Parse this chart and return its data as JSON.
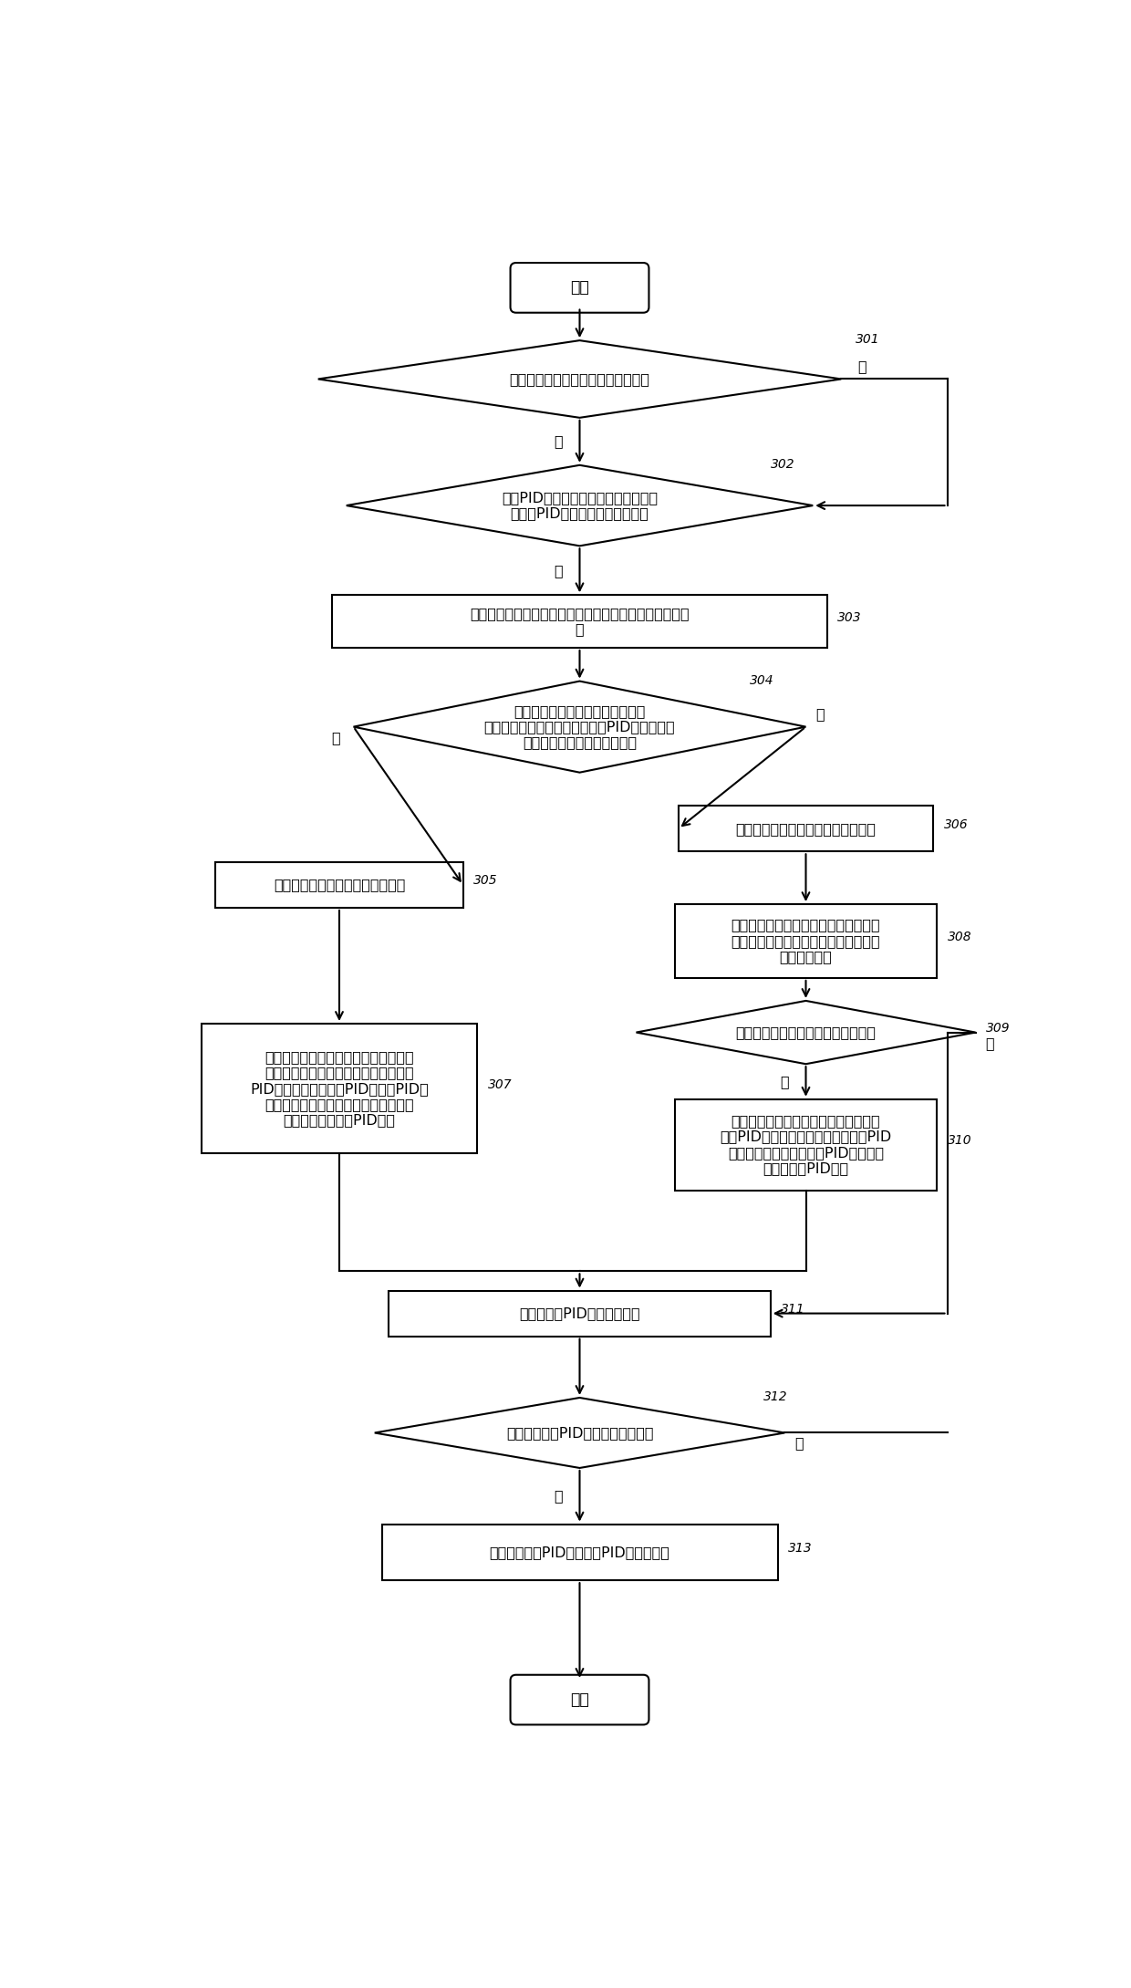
{
  "bg_color": "#ffffff",
  "line_color": "#000000",
  "text_color": "#000000",
  "figsize": [
    12.4,
    21.79
  ],
  "dpi": 100,
  "nodes": {
    "start": {
      "label": "开始"
    },
    "d301": {
      "label": "判断风力发电机组是否处于变桨状态",
      "ref": "301"
    },
    "d302": {
      "label": "判断PID控制器输出的实时给定位置是\n否等于PID控制器设定的目标位置",
      "ref": "302"
    },
    "r303": {
      "label": "在控制周期中记录被控系统的预设调整对象的实时实际位\n置",
      "ref": "303"
    },
    "d304": {
      "label": "若被控系统的预设调整对象的实时\n实际位置等于目标位置，则判断PID控制器的实\n时输出速度是否大于预设阈值",
      "ref": "304"
    },
    "r305": {
      "label": "确定被控系统的预设调整对象超调",
      "ref": "305"
    },
    "r306": {
      "label": "确定被控系统的预设调整对象未超调",
      "ref": "306"
    },
    "r307": {
      "label": "根据当前时刻之前预设数量控制周期的\n预设调整对象的实时实际位置及预设的\nPID公式计算整定后的PID参数，PID公\n式的参数包括目标位置、预设调整对象\n的实时实际位置及PID参数",
      "ref": "307"
    },
    "r308": {
      "label": "计算实时给定位置达到目标位置的时刻\n与实时实际位置达到目标位置的时刻之\n间的时间差值",
      "ref": "308"
    },
    "d309": {
      "label": "判断时间差值是否大于预设时间差值",
      "ref": "309"
    },
    "r310": {
      "label": "计算时间差值与预设时间差值的比值，\n作为PID参数的增大比例系数，按照PID\n参数的增大比例系数增大PID参数，形\n成整定后的PID参数",
      "ref": "310"
    },
    "r311": {
      "label": "对整定后的PID参数进行校验",
      "ref": "311"
    },
    "d312": {
      "label": "判断整定后的PID参数是否通过校验",
      "ref": "312"
    },
    "r313": {
      "label": "根据整定后的PID参数进行PID控制的操作",
      "ref": "313"
    },
    "end": {
      "label": "结束"
    }
  }
}
